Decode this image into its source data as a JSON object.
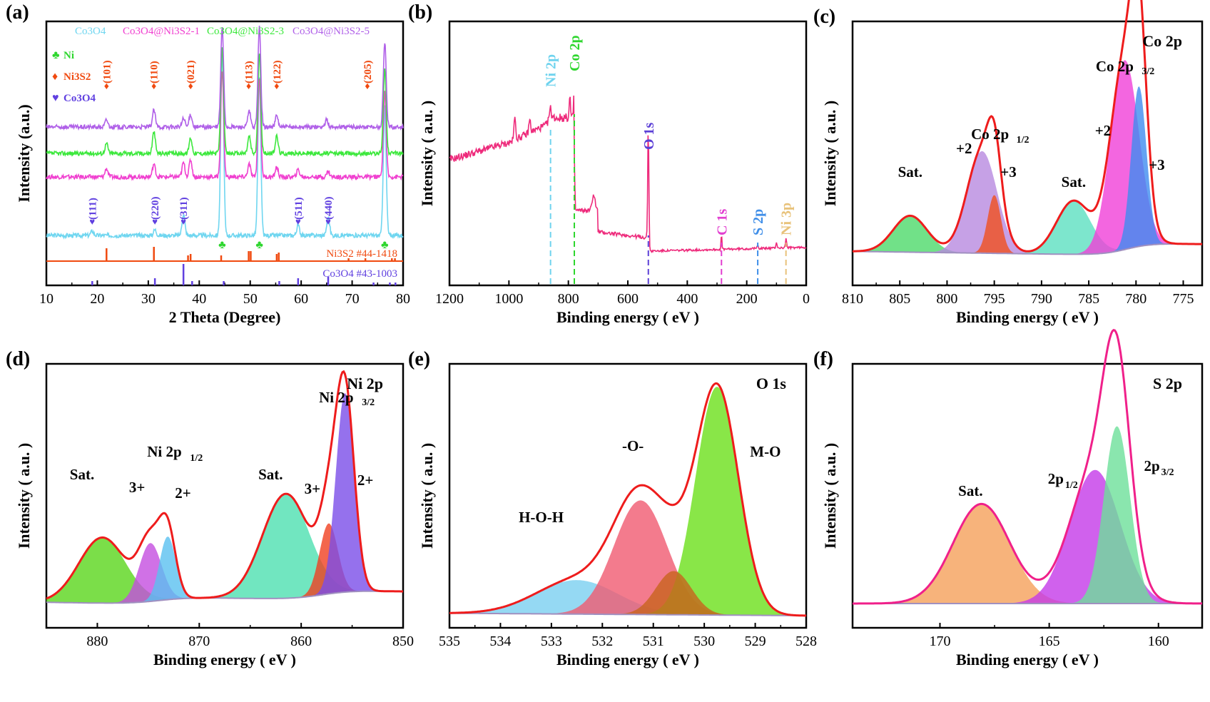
{
  "panels": [
    {
      "label": "(a)",
      "type": "line",
      "xlabel": "2 Theta (Degree)",
      "ylabel": "Intensity (a.u.)",
      "xlim": [
        10,
        80
      ],
      "xticks": [
        10,
        20,
        30,
        40,
        50,
        60,
        70,
        80
      ],
      "legend": [
        "Co3O4",
        "Co3O4@Ni3S2-1",
        "Co3O4@Ni3S2-3",
        "Co3O4@Ni3S2-5"
      ],
      "markers": [
        "Ni",
        "Ni3S2",
        "Co3O4"
      ],
      "peak_labels_ni3s2": [
        {
          "x": 21.8,
          "t": "(101)"
        },
        {
          "x": 31.1,
          "t": "(110)"
        },
        {
          "x": 38.3,
          "t": "(021)"
        },
        {
          "x": 49.7,
          "t": "(113)"
        },
        {
          "x": 55.2,
          "t": "(122)"
        },
        {
          "x": 73.0,
          "t": "(205)"
        }
      ],
      "peak_labels_co3o4": [
        {
          "x": 19.0,
          "t": "(111)"
        },
        {
          "x": 31.3,
          "t": "(220)"
        },
        {
          "x": 36.9,
          "t": "(311)"
        },
        {
          "x": 59.4,
          "t": "(511)"
        },
        {
          "x": 65.3,
          "t": "(440)"
        }
      ],
      "ni_peaks": [
        44.5,
        51.8,
        76.4
      ],
      "ref_ni3s2": {
        "label": "Ni3S2 #44-1418",
        "peaks": [
          21.8,
          31.1,
          37.8,
          38.3,
          44.3,
          49.7,
          50.1,
          55.2,
          55.6,
          69.3,
          72.6,
          77.8,
          78.4
        ]
      },
      "ref_co3o4": {
        "label": "Co3O4 #43-1003",
        "peaks": [
          19.0,
          31.3,
          36.9,
          38.6,
          44.8,
          55.7,
          59.4,
          65.3,
          74.2,
          77.4,
          78.5
        ]
      }
    },
    {
      "label": "(b)",
      "type": "line",
      "xlabel": "Binding energy ( eV )",
      "ylabel": "Intensity ( a.u. )",
      "xlim": [
        1200,
        0
      ],
      "xticks": [
        1200,
        1000,
        800,
        600,
        400,
        200,
        0
      ],
      "peak_lines": [
        {
          "x": 860,
          "t": "Ni 2p",
          "c": "#6fd3ee"
        },
        {
          "x": 780,
          "t": "Co 2p",
          "c": "#2ed62e"
        },
        {
          "x": 531,
          "t": "O 1s",
          "c": "#5b3fd6"
        },
        {
          "x": 285,
          "t": "C 1s",
          "c": "#e23fd0"
        },
        {
          "x": 163,
          "t": "S 2p",
          "c": "#3f8ee8"
        },
        {
          "x": 68,
          "t": "Ni 3p",
          "c": "#e8c27a"
        }
      ]
    },
    {
      "label": "(c)",
      "type": "area",
      "title": "Co 2p",
      "xlabel": "Binding energy ( eV )",
      "ylabel": "Intensity ( a.u. )",
      "xlim": [
        810,
        773
      ],
      "xticks": [
        810,
        805,
        800,
        795,
        790,
        785,
        780,
        775
      ],
      "annotations": [
        "Co 2p3/2",
        "Co 2p1/2",
        "Sat.",
        "+2",
        "+3",
        "Sat.",
        "+2",
        "+3"
      ],
      "components": [
        {
          "name": "Sat.",
          "center": 803.9,
          "height": 0.15,
          "width": 1.8,
          "color": "#4dd96a"
        },
        {
          "name": "+2",
          "center": 796.3,
          "height": 0.42,
          "width": 1.6,
          "color": "#b88ae0"
        },
        {
          "name": "+3",
          "center": 795.0,
          "height": 0.24,
          "width": 0.7,
          "color": "#f0501e"
        },
        {
          "name": "Sat.",
          "center": 786.6,
          "height": 0.22,
          "width": 1.8,
          "color": "#5de0c0"
        },
        {
          "name": "+2",
          "center": 781.2,
          "height": 0.78,
          "width": 1.5,
          "color": "#f040d8"
        },
        {
          "name": "+3",
          "center": 779.7,
          "height": 0.66,
          "width": 0.8,
          "color": "#3f8cf0"
        }
      ]
    },
    {
      "label": "(d)",
      "type": "area",
      "title": "Ni 2p",
      "xlabel": "Binding energy ( eV )",
      "ylabel": "Intensity ( a.u. )",
      "xlim": [
        885,
        850
      ],
      "xticks": [
        880,
        870,
        860,
        850
      ],
      "annotations": [
        "Ni 2p3/2",
        "Ni 2p1/2",
        "Sat.",
        "3+",
        "2+",
        "Sat.",
        "3+",
        "2+"
      ],
      "components": [
        {
          "name": "Sat.",
          "center": 879.5,
          "height": 0.27,
          "width": 2.3,
          "color": "#5ad61c"
        },
        {
          "name": "3+",
          "center": 874.8,
          "height": 0.24,
          "width": 1.1,
          "color": "#c44ee0"
        },
        {
          "name": "2+",
          "center": 873.1,
          "height": 0.26,
          "width": 0.8,
          "color": "#5ac0f0"
        },
        {
          "name": "Sat.",
          "center": 861.5,
          "height": 0.43,
          "width": 2.3,
          "color": "#4de0b0"
        },
        {
          "name": "3+",
          "center": 857.3,
          "height": 0.29,
          "width": 0.9,
          "color": "#f04020"
        },
        {
          "name": "2+",
          "center": 855.7,
          "height": 0.82,
          "width": 0.9,
          "color": "#7a4ee8"
        }
      ]
    },
    {
      "label": "(e)",
      "type": "area",
      "title": "O 1s",
      "xlabel": "Binding energy ( eV )",
      "ylabel": "Intensity ( a.u. )",
      "xlim": [
        535,
        528
      ],
      "xticks": [
        535,
        534,
        533,
        532,
        531,
        530,
        529,
        528
      ],
      "annotations": [
        "-O-",
        "M-O",
        "H-O-H"
      ],
      "components": [
        {
          "name": "H-O-H",
          "center": 532.5,
          "height": 0.14,
          "width": 0.8,
          "color": "#7ad0f0"
        },
        {
          "name": "-O-",
          "center": 531.25,
          "height": 0.47,
          "width": 0.52,
          "color": "#f05a70"
        },
        {
          "name": "M-O",
          "center": 529.75,
          "height": 0.94,
          "width": 0.42,
          "color": "#6be01a"
        },
        {
          "name": "",
          "center": 530.6,
          "height": 0.18,
          "width": 0.35,
          "color": "#c8641e"
        }
      ]
    },
    {
      "label": "(f)",
      "type": "area",
      "title": "S 2p",
      "xlabel": "Binding energy ( eV )",
      "ylabel": "Intensity ( a.u. )",
      "xlim": [
        174,
        158
      ],
      "xticks": [
        170,
        165,
        160
      ],
      "annotations": [
        "Sat.",
        "2p1/2",
        "2p3/2"
      ],
      "components": [
        {
          "name": "Sat.",
          "center": 168.1,
          "height": 0.41,
          "width": 1.3,
          "color": "#f5a05a"
        },
        {
          "name": "2p1/2",
          "center": 162.9,
          "height": 0.55,
          "width": 1.15,
          "color": "#c43ae8"
        },
        {
          "name": "2p3/2",
          "center": 161.9,
          "height": 0.73,
          "width": 0.6,
          "color": "#6de09a"
        }
      ]
    }
  ]
}
